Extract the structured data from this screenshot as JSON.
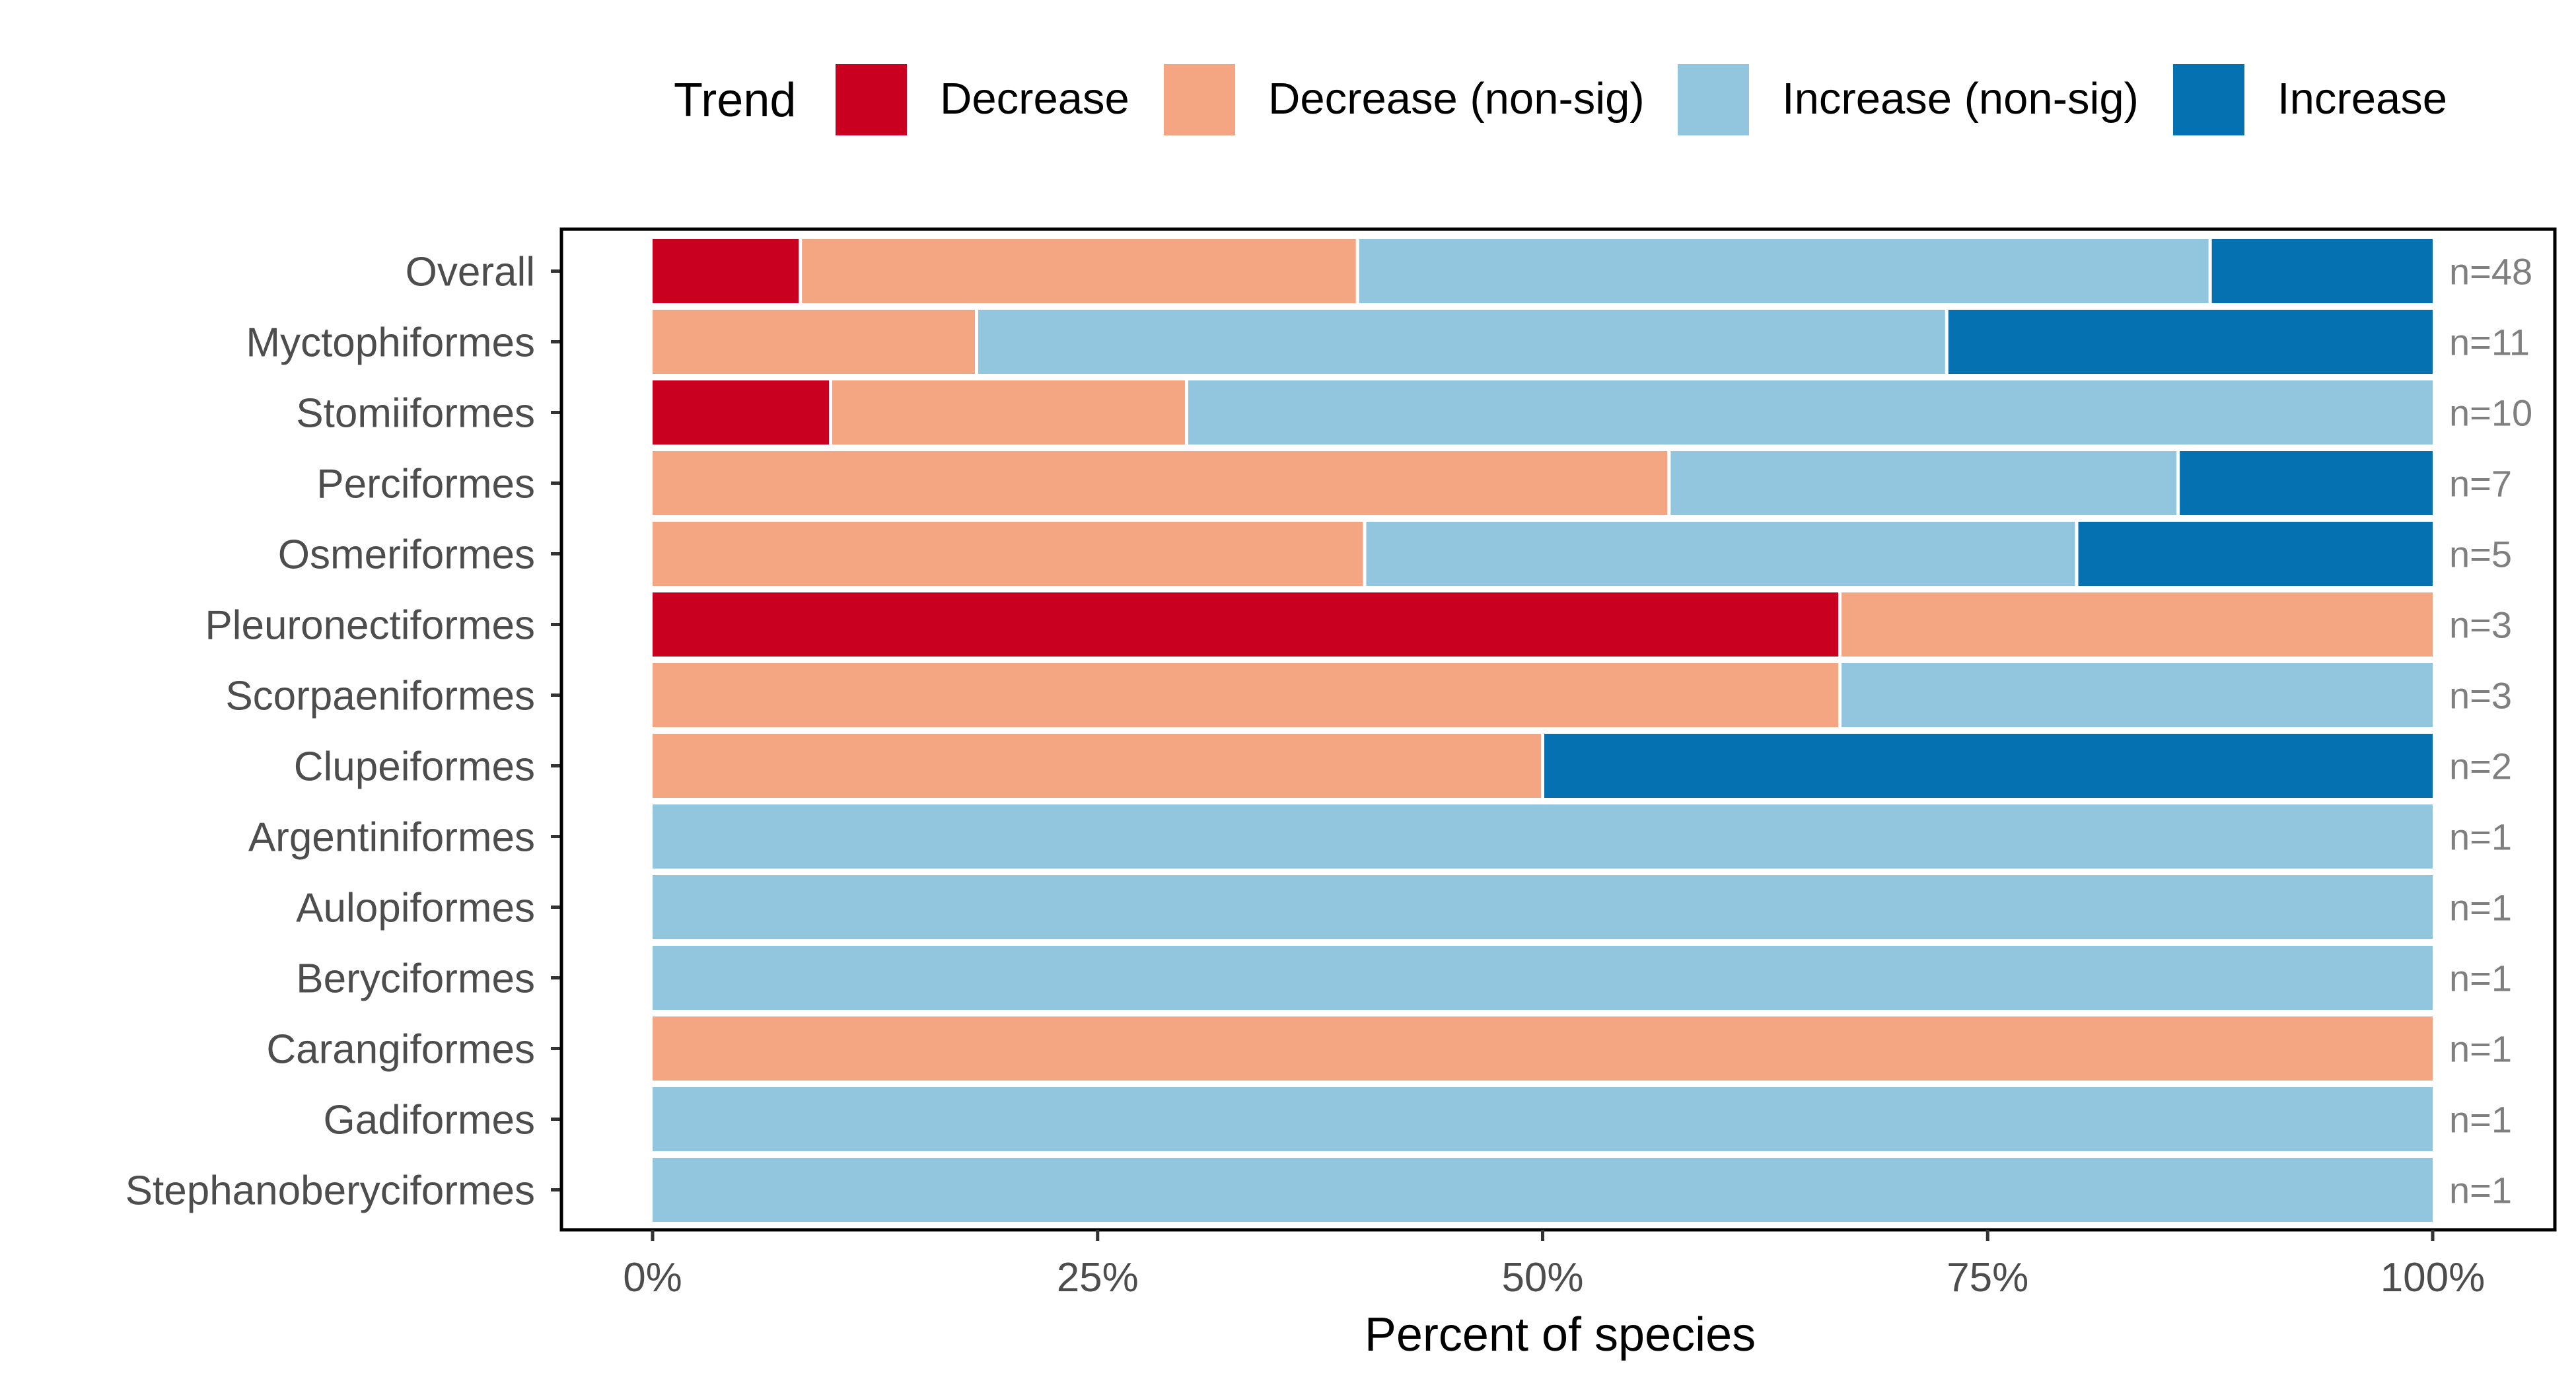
{
  "chart_data": {
    "type": "bar",
    "orientation": "horizontal",
    "stacked": true,
    "title": "",
    "xlabel": "Percent of species",
    "ylabel": "",
    "xlim": [
      0,
      100
    ],
    "x_ticks": [
      0,
      25,
      50,
      75,
      100
    ],
    "x_tick_labels": [
      "0%",
      "25%",
      "50%",
      "75%",
      "100%"
    ],
    "legend": {
      "title": "Trend",
      "position": "top",
      "entries": [
        "Decrease",
        "Decrease (non-sig)",
        "Increase (non-sig)",
        "Increase"
      ]
    },
    "categories": [
      "Overall",
      "Myctophiformes",
      "Stomiiformes",
      "Perciformes",
      "Osmeriformes",
      "Pleuronectiformes",
      "Scorpaeniformes",
      "Clupeiformes",
      "Argentiniformes",
      "Aulopiformes",
      "Beryciformes",
      "Carangiformes",
      "Gadiformes",
      "Stephanoberyciformes"
    ],
    "n_labels": [
      "n=48",
      "n=11",
      "n=10",
      "n=7",
      "n=5",
      "n=3",
      "n=3",
      "n=2",
      "n=1",
      "n=1",
      "n=1",
      "n=1",
      "n=1",
      "n=1"
    ],
    "series": [
      {
        "name": "Decrease",
        "color": "#ca0020",
        "values": [
          8.3,
          0,
          10,
          0,
          0,
          66.7,
          0,
          0,
          0,
          0,
          0,
          0,
          0,
          0
        ]
      },
      {
        "name": "Decrease (non-sig)",
        "color": "#f4a582",
        "values": [
          31.3,
          18.2,
          20,
          57.1,
          40,
          33.3,
          66.7,
          50,
          0,
          0,
          0,
          100,
          0,
          0
        ]
      },
      {
        "name": "Increase (non-sig)",
        "color": "#92c5de",
        "values": [
          47.9,
          54.5,
          70,
          28.6,
          40,
          0,
          33.3,
          0,
          100,
          100,
          100,
          0,
          100,
          100
        ]
      },
      {
        "name": "Increase",
        "color": "#0571b0",
        "values": [
          12.5,
          27.3,
          0,
          14.3,
          20,
          0,
          0,
          50,
          0,
          0,
          0,
          0,
          0,
          0
        ]
      }
    ]
  }
}
